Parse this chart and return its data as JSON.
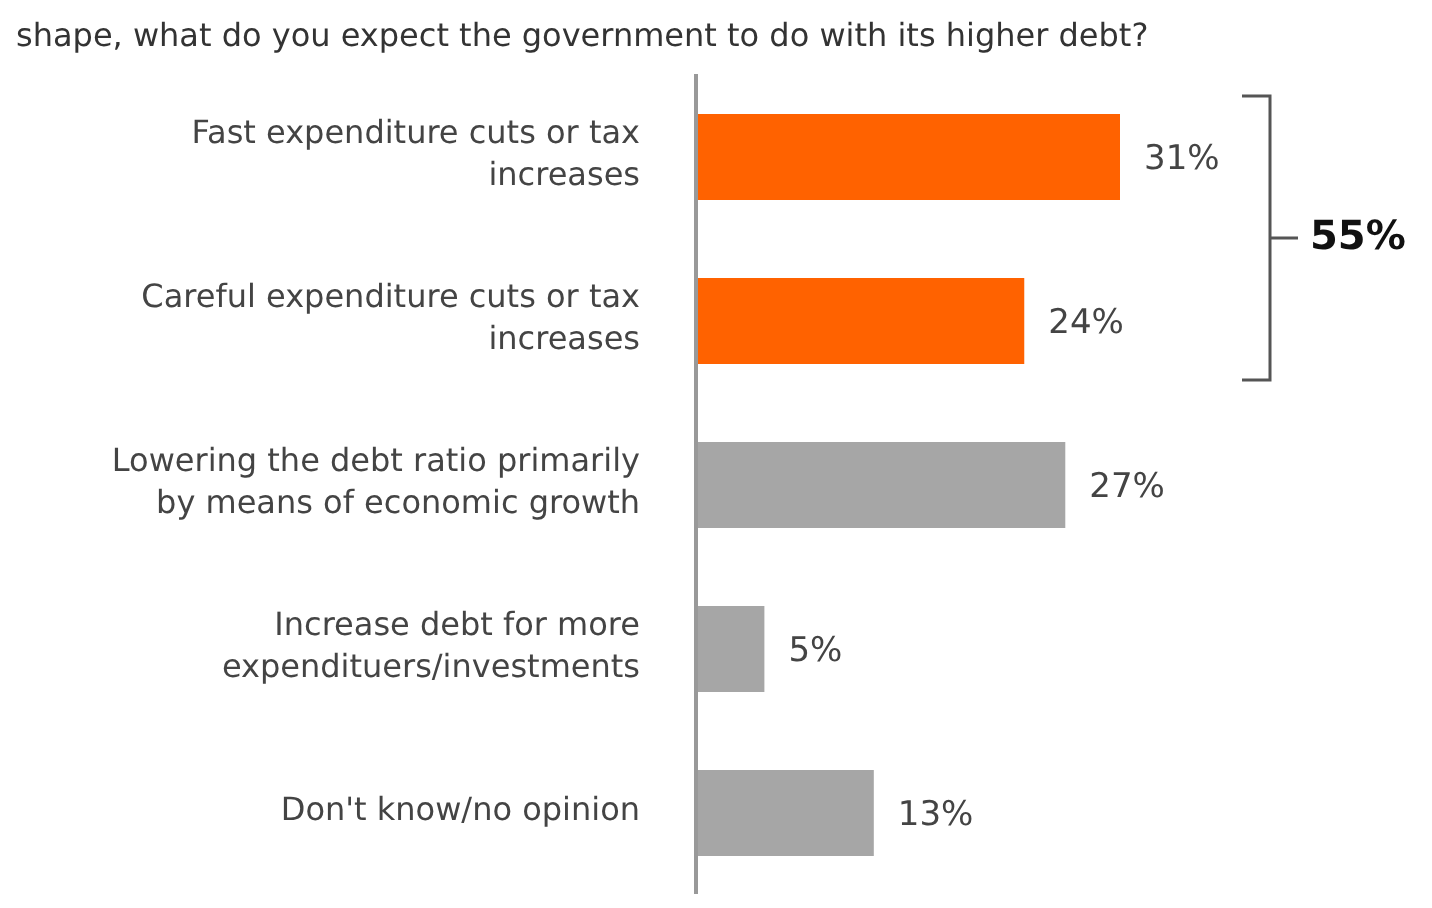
{
  "chart_data": {
    "type": "bar",
    "orientation": "horizontal",
    "title": "shape, what do you expect the government to do with its higher debt?",
    "categories": [
      "Fast expenditure cuts or tax increases",
      "Careful expenditure cuts or tax increases",
      "Lowering the debt ratio primarily by means of economic growth",
      "Increase debt for more expendituers/investments",
      "Don't know/no opinion"
    ],
    "values": [
      31,
      24,
      27,
      5,
      13
    ],
    "value_labels": [
      "31%",
      "24%",
      "27%",
      "5%",
      "13%"
    ],
    "colors": [
      "#ff6200",
      "#ff6200",
      "#a6a6a6",
      "#a6a6a6",
      "#a6a6a6"
    ],
    "annotations": [
      "55%"
    ],
    "grid": false,
    "legend": false
  }
}
